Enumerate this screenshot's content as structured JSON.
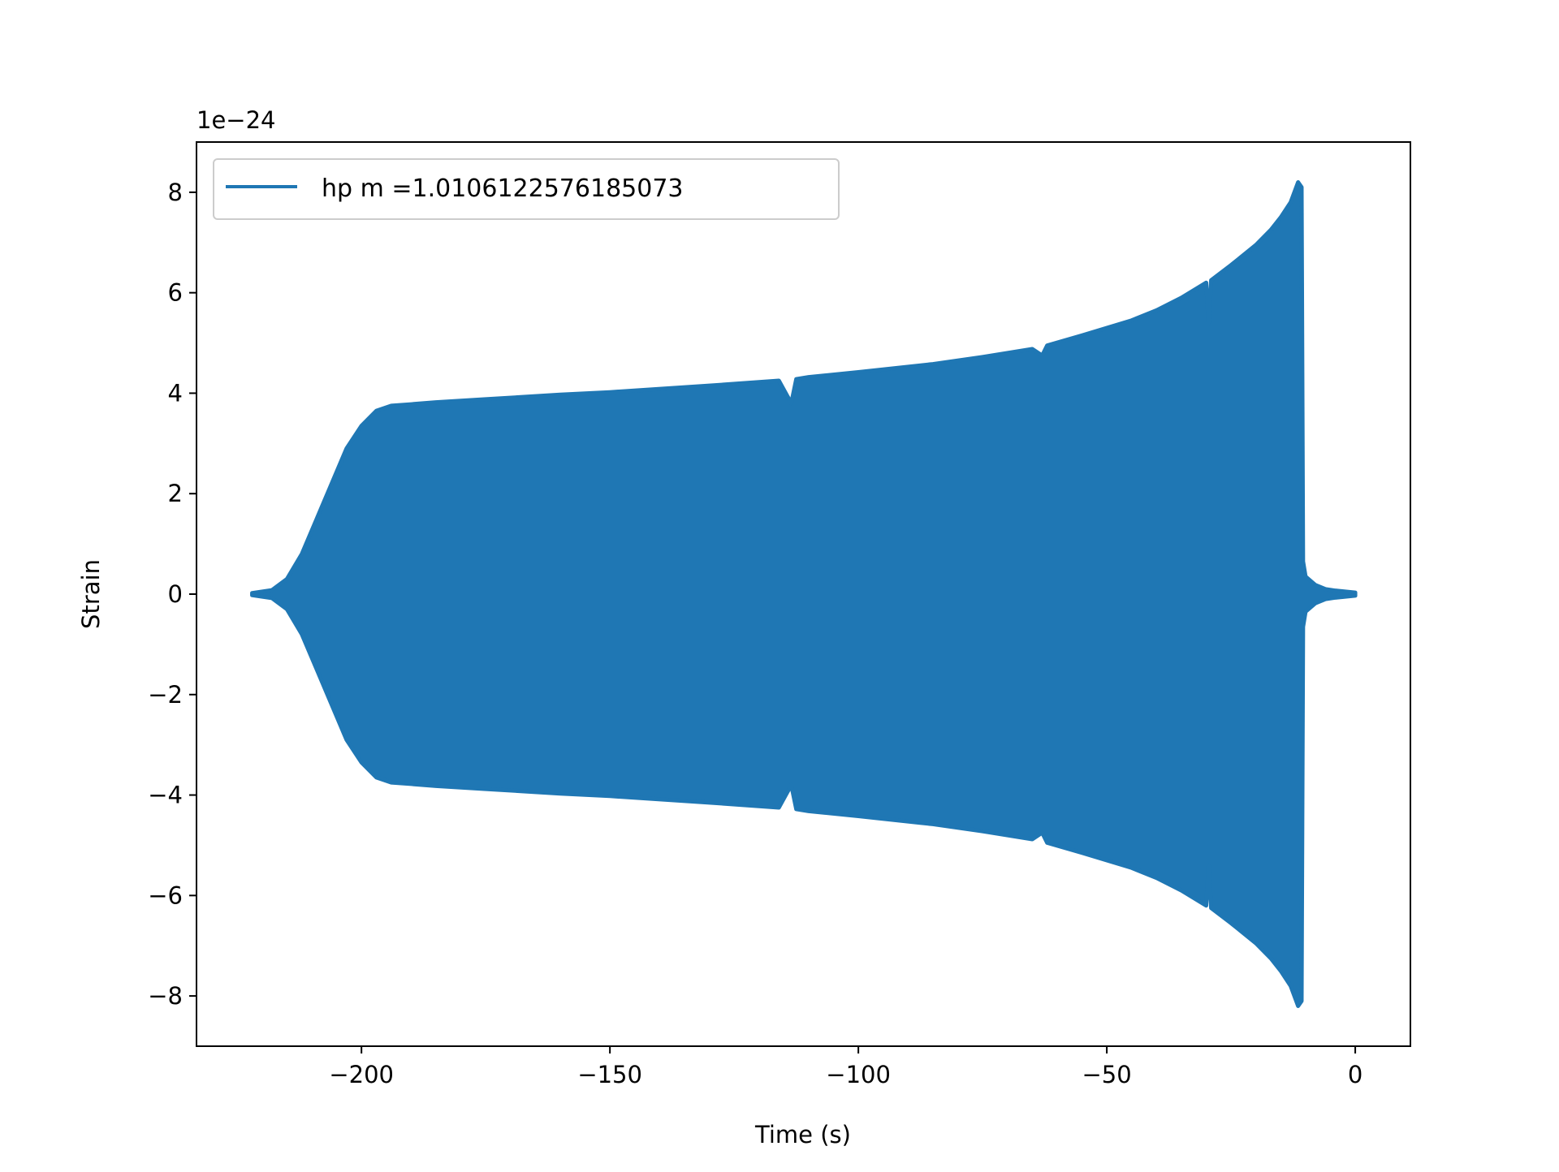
{
  "chart_data": {
    "type": "line",
    "title": "",
    "xlabel": "Time (s)",
    "ylabel": "Strain",
    "offset_label": "1e−24",
    "xlim": [
      -233.2,
      11.1
    ],
    "ylim": [
      -9,
      9
    ],
    "xticks": [
      -200,
      -150,
      -100,
      -50,
      0
    ],
    "xtick_labels": [
      "−200",
      "−150",
      "−100",
      "−50",
      "0"
    ],
    "yticks": [
      -8,
      -6,
      -4,
      -2,
      0,
      2,
      4,
      6,
      8
    ],
    "ytick_labels": [
      "−8",
      "−6",
      "−4",
      "−2",
      "0",
      "2",
      "4",
      "6",
      "8"
    ],
    "grid": false,
    "legend_position": "top-left",
    "series": [
      {
        "name": "hp m =1.0106122576185073",
        "color": "#1f77b4",
        "description_of_values": "oscillating strain; envelope amplitude vs time",
        "envelope": {
          "t": [
            -222,
            -218,
            -215,
            -212,
            -209,
            -206,
            -203,
            -200,
            -197,
            -194,
            -190,
            -185,
            -175,
            -160,
            -150,
            -130,
            -116,
            -113.5,
            -112.5,
            -110,
            -100,
            -85,
            -75,
            -65,
            -63,
            -62,
            -55,
            -50,
            -45,
            -40,
            -35,
            -30,
            -29.5,
            -29,
            -25,
            -20,
            -17,
            -15,
            -13,
            -11.5,
            -10.8,
            -10.5,
            -10,
            -8,
            -6,
            -4,
            -2,
            0
          ],
          "amp": [
            0.02,
            0.08,
            0.3,
            0.8,
            1.5,
            2.2,
            2.9,
            3.35,
            3.65,
            3.75,
            3.78,
            3.82,
            3.88,
            3.97,
            4.02,
            4.15,
            4.25,
            3.8,
            4.28,
            4.32,
            4.42,
            4.58,
            4.72,
            4.88,
            4.75,
            4.95,
            5.15,
            5.3,
            5.45,
            5.65,
            5.9,
            6.2,
            5.4,
            6.25,
            6.55,
            6.95,
            7.25,
            7.5,
            7.8,
            8.2,
            8.1,
            0.65,
            0.35,
            0.18,
            0.1,
            0.07,
            0.05,
            0.03
          ]
        }
      }
    ]
  }
}
